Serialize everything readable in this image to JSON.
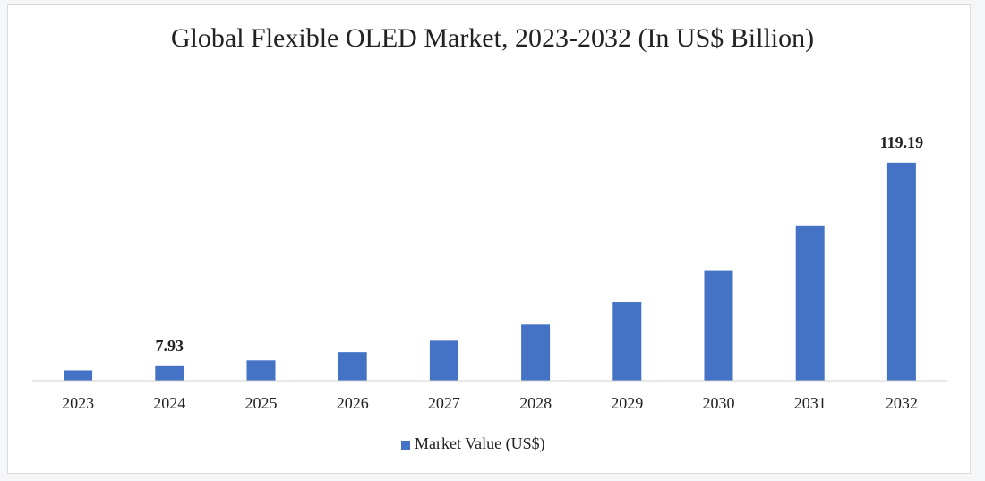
{
  "chart_data": {
    "type": "bar",
    "title": "Global Flexible OLED Market, 2023-2032 (In US$ Billion)",
    "categories": [
      "2023",
      "2024",
      "2025",
      "2026",
      "2027",
      "2028",
      "2029",
      "2030",
      "2031",
      "2032"
    ],
    "series": [
      {
        "name": "Market Value (US$)",
        "color": "#4472c4",
        "values": [
          5.65,
          7.93,
          11.13,
          15.61,
          21.9,
          30.73,
          43.12,
          60.5,
          84.9,
          119.19
        ],
        "value_labels": [
          null,
          "7.93",
          null,
          null,
          null,
          null,
          null,
          null,
          null,
          "119.19"
        ]
      }
    ],
    "ylim": [
      0,
      125
    ],
    "legend": "bottom"
  }
}
